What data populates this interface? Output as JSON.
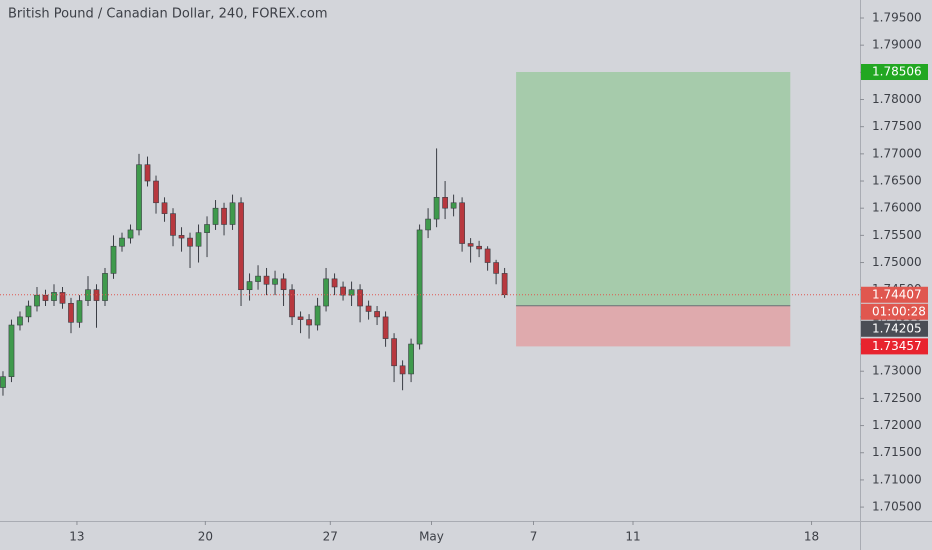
{
  "chart_data": {
    "type": "candlestick",
    "title": "British Pound / Canadian Dollar, 240, FOREX.com",
    "up_color": "#3f9a4c",
    "down_color": "#b8383e",
    "candles": {
      "open": [
        1.727,
        1.729,
        1.7385,
        1.74,
        1.742,
        1.744,
        1.743,
        1.7445,
        1.7425,
        1.739,
        1.743,
        1.745,
        1.743,
        1.748,
        1.753,
        1.7545,
        1.756,
        1.768,
        1.765,
        1.761,
        1.759,
        1.755,
        1.7545,
        1.753,
        1.7555,
        1.757,
        1.76,
        1.757,
        1.761,
        1.745,
        1.7465,
        1.7475,
        1.746,
        1.747,
        1.745,
        1.74,
        1.7395,
        1.7385,
        1.742,
        1.747,
        1.7455,
        1.744,
        1.745,
        1.742,
        1.741,
        1.74,
        1.736,
        1.731,
        1.7295,
        1.735,
        1.756,
        1.758,
        1.762,
        1.76,
        1.761,
        1.7535,
        1.753,
        1.7525,
        1.75,
        1.748
      ],
      "high": [
        1.73,
        1.7395,
        1.741,
        1.743,
        1.7455,
        1.745,
        1.746,
        1.7455,
        1.7435,
        1.744,
        1.7475,
        1.746,
        1.749,
        1.755,
        1.7555,
        1.757,
        1.77,
        1.7695,
        1.766,
        1.762,
        1.76,
        1.7565,
        1.7555,
        1.757,
        1.7585,
        1.7615,
        1.761,
        1.7625,
        1.762,
        1.748,
        1.7495,
        1.749,
        1.7485,
        1.748,
        1.746,
        1.741,
        1.7405,
        1.7435,
        1.749,
        1.748,
        1.7465,
        1.7465,
        1.746,
        1.743,
        1.742,
        1.741,
        1.737,
        1.732,
        1.736,
        1.757,
        1.76,
        1.771,
        1.765,
        1.7625,
        1.762,
        1.7545,
        1.754,
        1.753,
        1.7505,
        1.749
      ],
      "low": [
        1.7255,
        1.728,
        1.7375,
        1.739,
        1.741,
        1.742,
        1.742,
        1.7415,
        1.737,
        1.738,
        1.742,
        1.738,
        1.742,
        1.747,
        1.752,
        1.7535,
        1.755,
        1.764,
        1.759,
        1.7575,
        1.753,
        1.752,
        1.749,
        1.75,
        1.751,
        1.756,
        1.755,
        1.756,
        1.742,
        1.743,
        1.745,
        1.744,
        1.744,
        1.742,
        1.7385,
        1.737,
        1.736,
        1.7375,
        1.741,
        1.744,
        1.743,
        1.742,
        1.739,
        1.7395,
        1.7385,
        1.7345,
        1.728,
        1.7265,
        1.728,
        1.734,
        1.7545,
        1.7565,
        1.758,
        1.7585,
        1.752,
        1.75,
        1.751,
        1.7485,
        1.746,
        1.7435
      ],
      "close": [
        1.729,
        1.7385,
        1.74,
        1.742,
        1.744,
        1.743,
        1.7445,
        1.7425,
        1.739,
        1.743,
        1.745,
        1.743,
        1.748,
        1.753,
        1.7545,
        1.756,
        1.768,
        1.765,
        1.761,
        1.759,
        1.755,
        1.7545,
        1.753,
        1.7555,
        1.757,
        1.76,
        1.757,
        1.761,
        1.745,
        1.7465,
        1.7475,
        1.746,
        1.747,
        1.745,
        1.74,
        1.7395,
        1.7385,
        1.742,
        1.747,
        1.7455,
        1.744,
        1.745,
        1.742,
        1.741,
        1.74,
        1.736,
        1.731,
        1.7295,
        1.735,
        1.756,
        1.758,
        1.762,
        1.76,
        1.761,
        1.7535,
        1.753,
        1.7525,
        1.75,
        1.748,
        1.74407
      ]
    },
    "xlim": [
      -0.35,
      100.8
    ],
    "xticks": [
      {
        "value": 8.7,
        "label": "13"
      },
      {
        "value": 23.8,
        "label": "20"
      },
      {
        "value": 38.5,
        "label": "27"
      },
      {
        "value": 50.4,
        "label": "May"
      },
      {
        "value": 62.4,
        "label": "7"
      },
      {
        "value": 74.1,
        "label": "11"
      },
      {
        "value": 95.1,
        "label": "18"
      }
    ],
    "ylim": [
      1.70244,
      1.79831
    ],
    "yticks": [
      {
        "value": 1.795,
        "label": "1.79500"
      },
      {
        "value": 1.79,
        "label": "1.79000"
      },
      {
        "value": 1.785,
        "label": "1.78500"
      },
      {
        "value": 1.78,
        "label": "1.78000"
      },
      {
        "value": 1.775,
        "label": "1.77500"
      },
      {
        "value": 1.77,
        "label": "1.77000"
      },
      {
        "value": 1.765,
        "label": "1.76500"
      },
      {
        "value": 1.76,
        "label": "1.76000"
      },
      {
        "value": 1.755,
        "label": "1.75500"
      },
      {
        "value": 1.75,
        "label": "1.75000"
      },
      {
        "value": 1.745,
        "label": "1.74500"
      },
      {
        "value": 1.74,
        "label": "1.74000"
      },
      {
        "value": 1.735,
        "label": "1.73500"
      },
      {
        "value": 1.73,
        "label": "1.73000"
      },
      {
        "value": 1.725,
        "label": "1.72500"
      },
      {
        "value": 1.72,
        "label": "1.72000"
      },
      {
        "value": 1.715,
        "label": "1.71500"
      },
      {
        "value": 1.71,
        "label": "1.71000"
      },
      {
        "value": 1.705,
        "label": "1.70500"
      }
    ],
    "current_price": {
      "value": 1.74407,
      "label": "1.74407",
      "countdown": "01:00:28",
      "color": "#e0574f"
    },
    "position": {
      "x_start": 60.35,
      "x_end": 92.6,
      "entry": {
        "value": 1.74205,
        "label": "1.74205",
        "color": "#4a4d55"
      },
      "target": {
        "value": 1.78506,
        "label": "1.78506",
        "color": "#22a722"
      },
      "stop": {
        "value": 1.73457,
        "label": "1.73457",
        "color": "#e8232e"
      },
      "profit_fill": "#a6cbab",
      "loss_fill": "#dfaaad"
    }
  }
}
